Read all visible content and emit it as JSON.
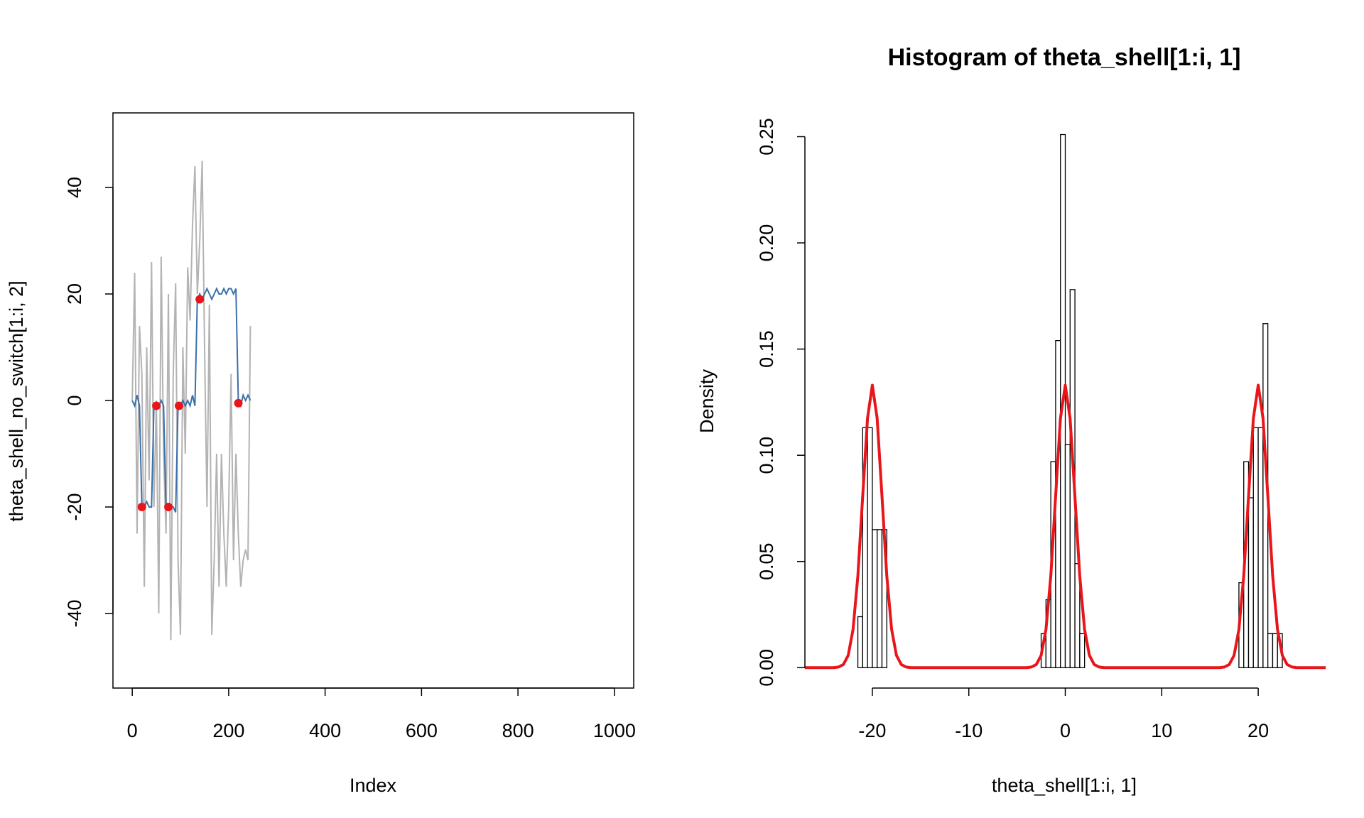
{
  "chart_data": [
    {
      "type": "line",
      "xlabel": "Index",
      "ylabel": "theta_shell_no_switch[1:i, 2]",
      "xlim": [
        -40,
        1040
      ],
      "ylim": [
        -54,
        54
      ],
      "xticks": [
        0,
        200,
        400,
        600,
        800,
        1000
      ],
      "yticks": [
        -40,
        -20,
        0,
        20,
        40
      ],
      "x": [
        0,
        5,
        10,
        15,
        20,
        25,
        30,
        35,
        40,
        45,
        50,
        55,
        60,
        65,
        70,
        75,
        80,
        85,
        90,
        95,
        100,
        105,
        110,
        115,
        120,
        125,
        130,
        135,
        140,
        145,
        150,
        155,
        160,
        165,
        170,
        175,
        180,
        185,
        190,
        195,
        200,
        205,
        210,
        215,
        220,
        225,
        230,
        235,
        240,
        245
      ],
      "series": [
        {
          "color": "#b3b3b3",
          "values": [
            0,
            24,
            -25,
            14,
            5,
            -35,
            10,
            -15,
            26,
            -20,
            0,
            -40,
            27,
            -10,
            -25,
            20,
            -45,
            5,
            22,
            -30,
            -44,
            10,
            -10,
            25,
            15,
            33,
            44,
            20,
            30,
            45,
            10,
            -20,
            18,
            -44,
            -30,
            -10,
            -35,
            -10,
            -25,
            -35,
            -20,
            5,
            -30,
            -10,
            -25,
            -35,
            -30,
            -28,
            -30,
            14
          ]
        },
        {
          "color": "#3b6fa8",
          "values": [
            0,
            -1,
            1,
            -1,
            -20,
            -20,
            -19,
            -20,
            -20,
            -1,
            -1,
            -1,
            0,
            -1,
            -20,
            -20,
            -20,
            -20,
            -21,
            -1,
            -1,
            0,
            -1,
            0,
            -1,
            1,
            -1,
            19,
            20,
            19,
            20,
            21,
            20,
            19,
            20,
            21,
            20,
            20,
            21,
            20,
            21,
            21,
            20,
            21,
            0,
            -1,
            1,
            0,
            1,
            0
          ]
        }
      ],
      "points": {
        "color": "#e8161b",
        "x": [
          20,
          50,
          75,
          97,
          140,
          220
        ],
        "values": [
          -20,
          -1,
          -20,
          -1,
          19,
          -0.5
        ]
      }
    },
    {
      "type": "histogram",
      "title": "Histogram of theta_shell[1:i, 1]",
      "xlabel": "theta_shell[1:i, 1]",
      "ylabel": "Density",
      "xlim": [
        -29.2,
        29.2
      ],
      "ylim": [
        -0.0096,
        0.2612
      ],
      "xticks": [
        -20,
        -10,
        0,
        10,
        20
      ],
      "yticks": [
        {
          "value": 0,
          "label": "0.00"
        },
        0.05,
        {
          "value": 0.1,
          "label": "0.10"
        },
        0.15,
        {
          "value": 0.2,
          "label": "0.20"
        },
        0.25
      ],
      "bins": [
        -21.5,
        -21,
        -20.5,
        -20,
        -19.5,
        -19,
        -18.5,
        -18,
        -17.5,
        -17,
        -16.5,
        -16,
        -15.5,
        -15,
        -14.5,
        -14,
        -13.5,
        -13,
        -12.5,
        -12,
        -11.5,
        -11,
        -10.5,
        -10,
        -9.5,
        -9,
        -8.5,
        -8,
        -7.5,
        -7,
        -6.5,
        -6,
        -5.5,
        -5,
        -4.5,
        -4,
        -3.5,
        -3,
        -2.5,
        -2,
        -1.5,
        -1,
        -0.5,
        0,
        0.5,
        1,
        1.5,
        2,
        2.5,
        3,
        3.5,
        4,
        4.5,
        5,
        5.5,
        6,
        6.5,
        7,
        7.5,
        8,
        8.5,
        9,
        9.5,
        10,
        10.5,
        11,
        11.5,
        12,
        12.5,
        13,
        13.5,
        14,
        14.5,
        15,
        15.5,
        16,
        16.5,
        17,
        17.5,
        18,
        18.5,
        19,
        19.5,
        20,
        20.5,
        21,
        21.5,
        22,
        22.5
      ],
      "values": [
        0.024,
        0.113,
        0.113,
        0.065,
        0.065,
        0.065,
        0,
        0,
        0,
        0,
        0,
        0,
        0,
        0,
        0,
        0,
        0,
        0,
        0,
        0,
        0,
        0,
        0,
        0,
        0,
        0,
        0,
        0,
        0,
        0,
        0,
        0,
        0,
        0,
        0,
        0,
        0,
        0,
        0.016,
        0.032,
        0.097,
        0.154,
        0.251,
        0.105,
        0.178,
        0.049,
        0.016,
        0,
        0,
        0,
        0,
        0,
        0,
        0,
        0,
        0,
        0,
        0,
        0,
        0,
        0,
        0,
        0,
        0,
        0,
        0,
        0,
        0,
        0,
        0,
        0,
        0,
        0,
        0,
        0,
        0,
        0,
        0,
        0,
        0.04,
        0.097,
        0.08,
        0.113,
        0.113,
        0.162,
        0.016,
        0.016,
        0.016
      ],
      "curve": {
        "color": "#e8161b",
        "x": [
          -27,
          -24,
          -23.5,
          -23,
          -22.5,
          -22,
          -21.5,
          -21,
          -20.5,
          -20,
          -19.5,
          -19,
          -18.5,
          -18,
          -17.5,
          -17,
          -16.5,
          -16,
          -4,
          -3.5,
          -3,
          -2.5,
          -2,
          -1.5,
          -1,
          -0.5,
          0,
          0.5,
          1,
          1.5,
          2,
          2.5,
          3,
          3.5,
          4,
          16,
          16.5,
          17,
          17.5,
          18,
          18.5,
          19,
          19.5,
          20,
          20.5,
          21,
          21.5,
          22,
          22.5,
          23,
          23.5,
          24,
          27
        ],
        "values": [
          0,
          0,
          0.0003,
          0.0015,
          0.0058,
          0.018,
          0.0432,
          0.0807,
          0.1174,
          0.133,
          0.1174,
          0.0807,
          0.0432,
          0.018,
          0.0058,
          0.0015,
          0.0003,
          0,
          0,
          0.0003,
          0.0015,
          0.0058,
          0.018,
          0.0432,
          0.0807,
          0.1174,
          0.133,
          0.1174,
          0.0807,
          0.0432,
          0.018,
          0.0058,
          0.0015,
          0.0003,
          0,
          0,
          0.0003,
          0.0015,
          0.0058,
          0.018,
          0.0432,
          0.0807,
          0.1174,
          0.133,
          0.1174,
          0.0807,
          0.0432,
          0.018,
          0.0058,
          0.0015,
          0.0003,
          0,
          0
        ]
      }
    }
  ]
}
